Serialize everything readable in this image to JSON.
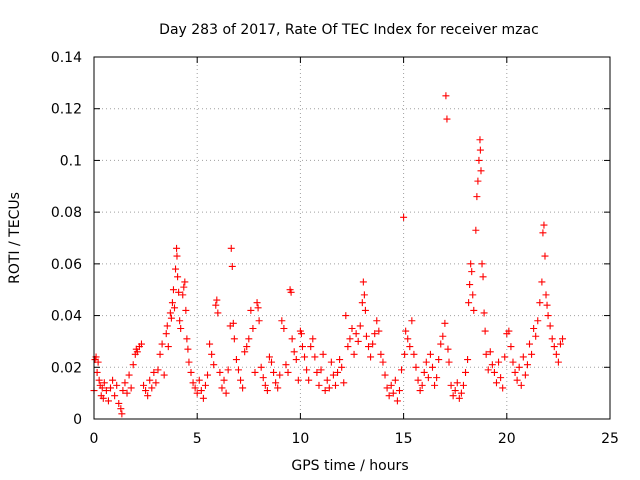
{
  "chart_data": {
    "type": "scatter",
    "title": "Day 283 of 2017, Rate Of TEC Index for receiver mzac",
    "xlabel": "GPS time / hours",
    "ylabel": "ROTI / TECUs",
    "xlim": [
      0,
      25
    ],
    "ylim": [
      0,
      0.14
    ],
    "xticks": [
      0,
      5,
      10,
      15,
      20,
      25
    ],
    "xtick_labels": [
      "0",
      "5",
      "10",
      "15",
      "20",
      "25"
    ],
    "yticks": [
      0,
      0.02,
      0.04,
      0.06,
      0.08,
      0.1,
      0.12,
      0.14
    ],
    "ytick_labels": [
      "0",
      "0.02",
      "0.04",
      "0.06",
      "0.08",
      "0.1",
      "0.12",
      "0.14"
    ],
    "grid": true,
    "marker": "+",
    "color": "#ff0000",
    "series": [
      {
        "name": "ROTI",
        "points": [
          [
            0.0,
            0.011
          ],
          [
            0.05,
            0.023
          ],
          [
            0.1,
            0.024
          ],
          [
            0.15,
            0.018
          ],
          [
            0.2,
            0.022
          ],
          [
            0.25,
            0.015
          ],
          [
            0.3,
            0.013
          ],
          [
            0.35,
            0.009
          ],
          [
            0.4,
            0.012
          ],
          [
            0.45,
            0.008
          ],
          [
            0.5,
            0.014
          ],
          [
            0.6,
            0.011
          ],
          [
            0.7,
            0.007
          ],
          [
            0.8,
            0.012
          ],
          [
            0.9,
            0.015
          ],
          [
            1.0,
            0.009
          ],
          [
            1.1,
            0.013
          ],
          [
            1.2,
            0.006
          ],
          [
            1.3,
            0.004
          ],
          [
            1.35,
            0.002
          ],
          [
            1.4,
            0.011
          ],
          [
            1.5,
            0.014
          ],
          [
            1.6,
            0.01
          ],
          [
            1.7,
            0.017
          ],
          [
            1.8,
            0.012
          ],
          [
            1.9,
            0.021
          ],
          [
            2.0,
            0.025
          ],
          [
            2.05,
            0.027
          ],
          [
            2.1,
            0.026
          ],
          [
            2.2,
            0.028
          ],
          [
            2.3,
            0.029
          ],
          [
            2.4,
            0.013
          ],
          [
            2.5,
            0.011
          ],
          [
            2.6,
            0.009
          ],
          [
            2.7,
            0.015
          ],
          [
            2.8,
            0.012
          ],
          [
            2.9,
            0.018
          ],
          [
            3.0,
            0.014
          ],
          [
            3.1,
            0.019
          ],
          [
            3.2,
            0.025
          ],
          [
            3.3,
            0.029
          ],
          [
            3.4,
            0.017
          ],
          [
            3.5,
            0.033
          ],
          [
            3.55,
            0.036
          ],
          [
            3.6,
            0.028
          ],
          [
            3.7,
            0.041
          ],
          [
            3.75,
            0.039
          ],
          [
            3.8,
            0.045
          ],
          [
            3.85,
            0.05
          ],
          [
            3.9,
            0.043
          ],
          [
            3.95,
            0.058
          ],
          [
            4.0,
            0.066
          ],
          [
            4.02,
            0.063
          ],
          [
            4.05,
            0.055
          ],
          [
            4.1,
            0.049
          ],
          [
            4.15,
            0.038
          ],
          [
            4.2,
            0.035
          ],
          [
            4.3,
            0.048
          ],
          [
            4.35,
            0.051
          ],
          [
            4.4,
            0.053
          ],
          [
            4.45,
            0.042
          ],
          [
            4.5,
            0.031
          ],
          [
            4.55,
            0.027
          ],
          [
            4.6,
            0.022
          ],
          [
            4.7,
            0.018
          ],
          [
            4.8,
            0.014
          ],
          [
            4.9,
            0.012
          ],
          [
            5.0,
            0.01
          ],
          [
            5.1,
            0.015
          ],
          [
            5.2,
            0.011
          ],
          [
            5.3,
            0.008
          ],
          [
            5.4,
            0.013
          ],
          [
            5.5,
            0.017
          ],
          [
            5.6,
            0.029
          ],
          [
            5.7,
            0.025
          ],
          [
            5.8,
            0.021
          ],
          [
            5.9,
            0.044
          ],
          [
            5.95,
            0.046
          ],
          [
            6.0,
            0.041
          ],
          [
            6.1,
            0.018
          ],
          [
            6.2,
            0.012
          ],
          [
            6.3,
            0.015
          ],
          [
            6.4,
            0.01
          ],
          [
            6.5,
            0.019
          ],
          [
            6.6,
            0.036
          ],
          [
            6.65,
            0.066
          ],
          [
            6.7,
            0.059
          ],
          [
            6.75,
            0.037
          ],
          [
            6.8,
            0.031
          ],
          [
            6.9,
            0.023
          ],
          [
            7.0,
            0.019
          ],
          [
            7.1,
            0.015
          ],
          [
            7.2,
            0.012
          ],
          [
            7.3,
            0.026
          ],
          [
            7.4,
            0.028
          ],
          [
            7.5,
            0.031
          ],
          [
            7.6,
            0.042
          ],
          [
            7.7,
            0.035
          ],
          [
            7.8,
            0.018
          ],
          [
            7.9,
            0.045
          ],
          [
            7.95,
            0.043
          ],
          [
            8.0,
            0.038
          ],
          [
            8.1,
            0.02
          ],
          [
            8.2,
            0.016
          ],
          [
            8.3,
            0.013
          ],
          [
            8.4,
            0.011
          ],
          [
            8.5,
            0.024
          ],
          [
            8.6,
            0.022
          ],
          [
            8.7,
            0.018
          ],
          [
            8.8,
            0.014
          ],
          [
            8.9,
            0.012
          ],
          [
            9.0,
            0.017
          ],
          [
            9.1,
            0.038
          ],
          [
            9.2,
            0.035
          ],
          [
            9.3,
            0.021
          ],
          [
            9.4,
            0.018
          ],
          [
            9.5,
            0.05
          ],
          [
            9.55,
            0.049
          ],
          [
            9.6,
            0.031
          ],
          [
            9.7,
            0.026
          ],
          [
            9.8,
            0.023
          ],
          [
            9.9,
            0.015
          ],
          [
            10.0,
            0.034
          ],
          [
            10.05,
            0.033
          ],
          [
            10.1,
            0.028
          ],
          [
            10.2,
            0.024
          ],
          [
            10.3,
            0.019
          ],
          [
            10.4,
            0.015
          ],
          [
            10.5,
            0.028
          ],
          [
            10.6,
            0.031
          ],
          [
            10.7,
            0.024
          ],
          [
            10.8,
            0.018
          ],
          [
            10.9,
            0.013
          ],
          [
            11.0,
            0.019
          ],
          [
            11.1,
            0.025
          ],
          [
            11.2,
            0.011
          ],
          [
            11.3,
            0.015
          ],
          [
            11.4,
            0.012
          ],
          [
            11.5,
            0.022
          ],
          [
            11.6,
            0.017
          ],
          [
            11.7,
            0.013
          ],
          [
            11.8,
            0.018
          ],
          [
            11.9,
            0.023
          ],
          [
            12.0,
            0.02
          ],
          [
            12.1,
            0.014
          ],
          [
            12.2,
            0.04
          ],
          [
            12.3,
            0.028
          ],
          [
            12.4,
            0.031
          ],
          [
            12.5,
            0.035
          ],
          [
            12.6,
            0.025
          ],
          [
            12.7,
            0.033
          ],
          [
            12.8,
            0.03
          ],
          [
            12.9,
            0.036
          ],
          [
            13.0,
            0.045
          ],
          [
            13.05,
            0.053
          ],
          [
            13.1,
            0.048
          ],
          [
            13.15,
            0.042
          ],
          [
            13.2,
            0.032
          ],
          [
            13.3,
            0.028
          ],
          [
            13.4,
            0.024
          ],
          [
            13.5,
            0.029
          ],
          [
            13.6,
            0.033
          ],
          [
            13.7,
            0.038
          ],
          [
            13.8,
            0.034
          ],
          [
            13.9,
            0.025
          ],
          [
            14.0,
            0.022
          ],
          [
            14.1,
            0.017
          ],
          [
            14.2,
            0.012
          ],
          [
            14.3,
            0.009
          ],
          [
            14.4,
            0.013
          ],
          [
            14.5,
            0.01
          ],
          [
            14.6,
            0.015
          ],
          [
            14.7,
            0.007
          ],
          [
            14.8,
            0.011
          ],
          [
            14.9,
            0.019
          ],
          [
            15.0,
            0.078
          ],
          [
            15.05,
            0.025
          ],
          [
            15.1,
            0.034
          ],
          [
            15.2,
            0.031
          ],
          [
            15.3,
            0.028
          ],
          [
            15.4,
            0.038
          ],
          [
            15.5,
            0.025
          ],
          [
            15.6,
            0.02
          ],
          [
            15.7,
            0.015
          ],
          [
            15.8,
            0.011
          ],
          [
            15.9,
            0.013
          ],
          [
            16.0,
            0.018
          ],
          [
            16.1,
            0.022
          ],
          [
            16.2,
            0.016
          ],
          [
            16.3,
            0.025
          ],
          [
            16.4,
            0.02
          ],
          [
            16.5,
            0.013
          ],
          [
            16.6,
            0.016
          ],
          [
            16.7,
            0.023
          ],
          [
            16.8,
            0.029
          ],
          [
            16.9,
            0.032
          ],
          [
            17.0,
            0.037
          ],
          [
            17.05,
            0.125
          ],
          [
            17.1,
            0.116
          ],
          [
            17.15,
            0.027
          ],
          [
            17.2,
            0.022
          ],
          [
            17.3,
            0.013
          ],
          [
            17.4,
            0.009
          ],
          [
            17.5,
            0.011
          ],
          [
            17.6,
            0.014
          ],
          [
            17.7,
            0.008
          ],
          [
            17.8,
            0.01
          ],
          [
            17.9,
            0.013
          ],
          [
            18.0,
            0.018
          ],
          [
            18.1,
            0.023
          ],
          [
            18.15,
            0.045
          ],
          [
            18.2,
            0.052
          ],
          [
            18.25,
            0.06
          ],
          [
            18.3,
            0.057
          ],
          [
            18.35,
            0.048
          ],
          [
            18.4,
            0.042
          ],
          [
            18.5,
            0.073
          ],
          [
            18.55,
            0.086
          ],
          [
            18.6,
            0.092
          ],
          [
            18.65,
            0.1
          ],
          [
            18.7,
            0.108
          ],
          [
            18.72,
            0.104
          ],
          [
            18.75,
            0.096
          ],
          [
            18.8,
            0.06
          ],
          [
            18.85,
            0.055
          ],
          [
            18.9,
            0.041
          ],
          [
            18.95,
            0.034
          ],
          [
            19.0,
            0.025
          ],
          [
            19.1,
            0.019
          ],
          [
            19.2,
            0.026
          ],
          [
            19.3,
            0.021
          ],
          [
            19.4,
            0.018
          ],
          [
            19.5,
            0.014
          ],
          [
            19.6,
            0.022
          ],
          [
            19.7,
            0.016
          ],
          [
            19.8,
            0.012
          ],
          [
            19.9,
            0.024
          ],
          [
            20.0,
            0.033
          ],
          [
            20.1,
            0.034
          ],
          [
            20.2,
            0.028
          ],
          [
            20.3,
            0.022
          ],
          [
            20.4,
            0.018
          ],
          [
            20.5,
            0.015
          ],
          [
            20.6,
            0.02
          ],
          [
            20.7,
            0.013
          ],
          [
            20.8,
            0.024
          ],
          [
            20.9,
            0.017
          ],
          [
            21.0,
            0.021
          ],
          [
            21.1,
            0.029
          ],
          [
            21.2,
            0.025
          ],
          [
            21.3,
            0.035
          ],
          [
            21.4,
            0.032
          ],
          [
            21.5,
            0.038
          ],
          [
            21.6,
            0.045
          ],
          [
            21.7,
            0.053
          ],
          [
            21.75,
            0.072
          ],
          [
            21.8,
            0.075
          ],
          [
            21.85,
            0.063
          ],
          [
            21.9,
            0.048
          ],
          [
            21.95,
            0.044
          ],
          [
            22.0,
            0.04
          ],
          [
            22.1,
            0.036
          ],
          [
            22.2,
            0.031
          ],
          [
            22.3,
            0.028
          ],
          [
            22.4,
            0.025
          ],
          [
            22.5,
            0.022
          ],
          [
            22.6,
            0.029
          ],
          [
            22.7,
            0.031
          ]
        ]
      }
    ]
  }
}
